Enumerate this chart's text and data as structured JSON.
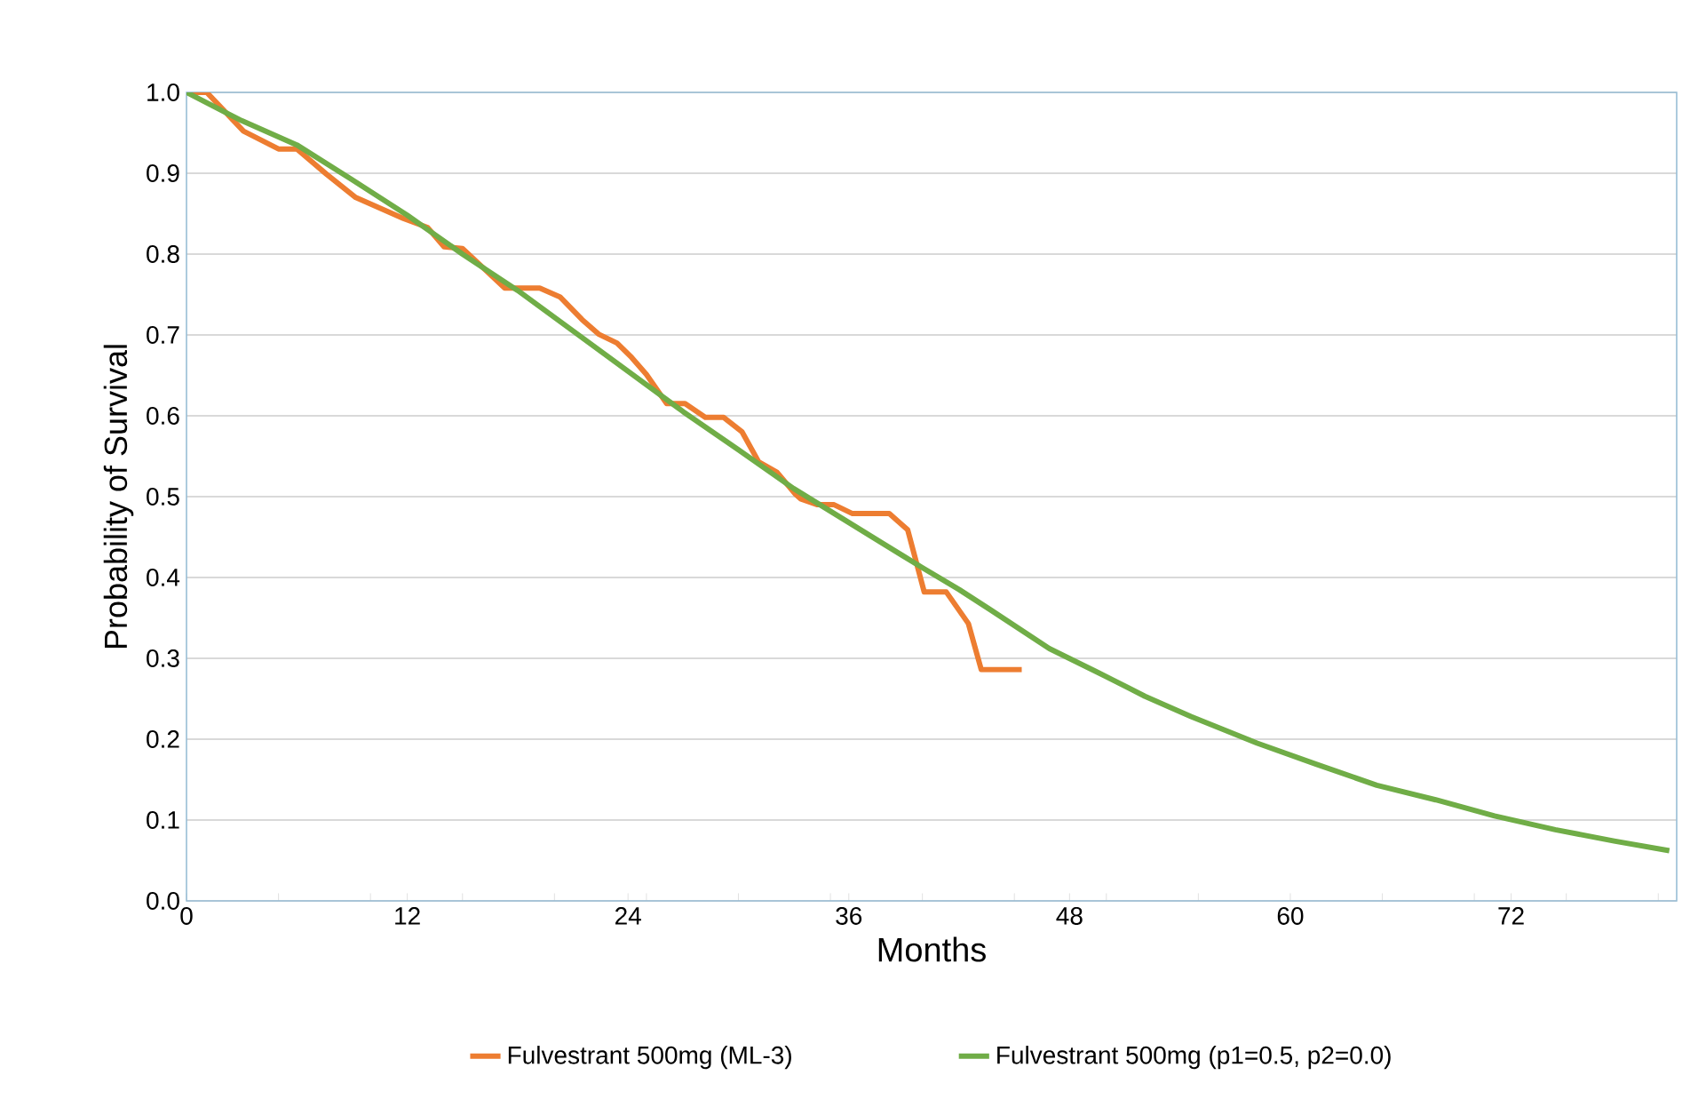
{
  "chart_data": {
    "type": "line",
    "xlabel": "Months",
    "ylabel": "Probability of Survival",
    "xlim": [
      0,
      81
    ],
    "ylim": [
      0,
      1.0
    ],
    "xticks": [
      0,
      {
        "value": 5,
        "label": null
      },
      {
        "value": 10,
        "label": null
      },
      12,
      {
        "value": 15,
        "label": null
      },
      {
        "value": 20,
        "label": null
      },
      24,
      {
        "value": 25,
        "label": null
      },
      {
        "value": 30,
        "label": null
      },
      {
        "value": 35,
        "label": null
      },
      36,
      {
        "value": 40,
        "label": null
      },
      {
        "value": 45,
        "label": null
      },
      48,
      {
        "value": 50,
        "label": null
      },
      {
        "value": 55,
        "label": null
      },
      60,
      {
        "value": 65,
        "label": null
      },
      {
        "value": 70,
        "label": null
      },
      72,
      {
        "value": 75,
        "label": null
      },
      {
        "value": 80,
        "label": null
      }
    ],
    "yticks": [
      {
        "value": 0,
        "label": "0.0"
      },
      0.1,
      0.2,
      0.3,
      0.4,
      0.5,
      0.6,
      0.7,
      0.8,
      0.9,
      {
        "value": 1.0,
        "label": "1.0"
      }
    ],
    "grid": "y",
    "legend": "bottom",
    "marker": "none",
    "line_style": "solid",
    "series": [
      {
        "name": "Fulvestrant 500mg (ML-3)",
        "color": "#ed7d31",
        "x": [
          0,
          1.1,
          3.1,
          5.0,
          6.0,
          7.6,
          9.2,
          11.8,
          13.1,
          14.0,
          15.0,
          17.3,
          19.2,
          20.3,
          21.5,
          22.4,
          23.4,
          24.2,
          25.0,
          26.1,
          27.1,
          28.2,
          29.2,
          30.2,
          31.1,
          32.1,
          33.1,
          33.4,
          34.3,
          35.2,
          36.2,
          38.2,
          39.2,
          40.1,
          41.3,
          42.5,
          43.2,
          45.4
        ],
        "values": [
          1.0,
          1.0,
          0.952,
          0.93,
          0.93,
          0.899,
          0.87,
          0.844,
          0.833,
          0.809,
          0.807,
          0.758,
          0.758,
          0.747,
          0.719,
          0.701,
          0.69,
          0.672,
          0.651,
          0.615,
          0.615,
          0.598,
          0.598,
          0.58,
          0.543,
          0.53,
          0.503,
          0.497,
          0.49,
          0.49,
          0.479,
          0.479,
          0.459,
          0.382,
          0.382,
          0.343,
          0.286,
          0.286
        ]
      },
      {
        "name": "Fulvestrant 500mg (p1=0.5, p2=0.0)",
        "color": "#70ad47",
        "x": [
          0,
          3,
          6,
          9,
          12,
          15,
          18,
          21,
          24,
          27,
          30,
          33,
          36,
          38,
          40,
          42,
          43.7,
          46.9,
          49.5,
          52.1,
          54.6,
          58.2,
          61.4,
          64.7,
          67.9,
          71.1,
          74.4,
          77.6,
          80.6
        ],
        "values": [
          1.0,
          0.965,
          0.935,
          0.892,
          0.848,
          0.8,
          0.755,
          0.705,
          0.655,
          0.605,
          0.558,
          0.51,
          0.468,
          0.44,
          0.412,
          0.385,
          0.36,
          0.312,
          0.283,
          0.253,
          0.228,
          0.195,
          0.169,
          0.143,
          0.125,
          0.105,
          0.088,
          0.074,
          0.062
        ]
      }
    ]
  }
}
